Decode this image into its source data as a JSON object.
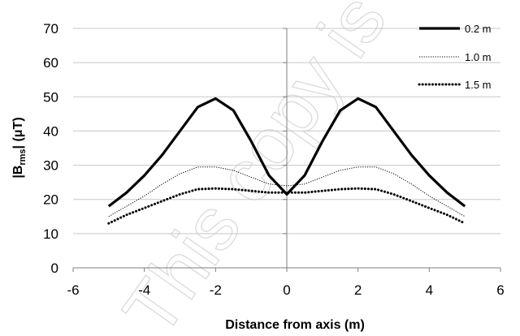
{
  "chart_data": {
    "type": "line",
    "title": "",
    "xlabel": "Distance from axis (m)",
    "ylabel_main": "|B",
    "ylabel_sub": "rms",
    "ylabel_tail": "| (μT)",
    "xlim": [
      -6,
      6
    ],
    "ylim": [
      0,
      70
    ],
    "xticks": [
      -6,
      -4,
      -2,
      0,
      2,
      4,
      6
    ],
    "yticks": [
      0,
      10,
      20,
      30,
      40,
      50,
      60,
      70
    ],
    "grid": "horizontal",
    "legend_position": "top-right",
    "watermark": "This copy is fo",
    "x": [
      -5,
      -4.5,
      -4,
      -3.5,
      -3,
      -2.5,
      -2,
      -1.5,
      -1,
      -0.5,
      0,
      0.5,
      1,
      1.5,
      2,
      2.5,
      3,
      3.5,
      4,
      4.5,
      5
    ],
    "series": [
      {
        "name": "0.2 m",
        "style": "solid-thick",
        "color": "#000000",
        "values": [
          18,
          22,
          27,
          33,
          40,
          47,
          49.5,
          46,
          37,
          27,
          21.5,
          27,
          37,
          46,
          49.5,
          47,
          40,
          33,
          27,
          22,
          18
        ]
      },
      {
        "name": "1.0 m",
        "style": "dotted-thin",
        "color": "#000000",
        "values": [
          15,
          18,
          21,
          24.5,
          27.5,
          29.5,
          29.5,
          28.5,
          26.5,
          24.5,
          24,
          24.5,
          26.5,
          28.5,
          29.5,
          29.5,
          27.5,
          24.5,
          21,
          18,
          15
        ]
      },
      {
        "name": "1.5 m",
        "style": "dotted-thick",
        "color": "#000000",
        "values": [
          13,
          15.5,
          17.5,
          19.5,
          21.5,
          23,
          23.2,
          23,
          22.5,
          22,
          22,
          22,
          22.5,
          23,
          23.2,
          23,
          21.5,
          19.5,
          17.5,
          15.5,
          13
        ]
      }
    ]
  }
}
